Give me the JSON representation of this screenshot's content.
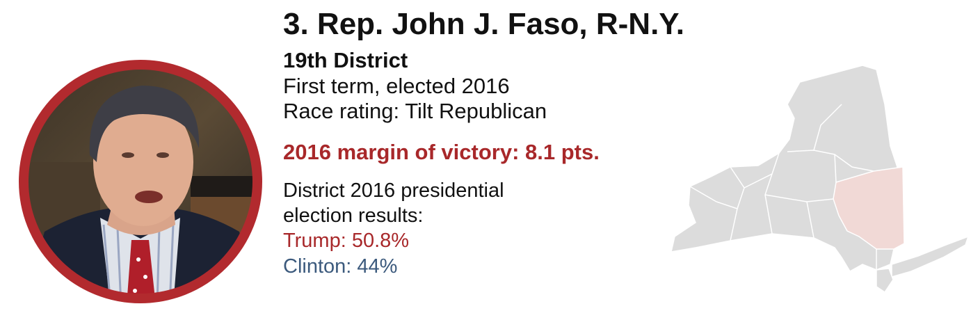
{
  "header": {
    "title": "3. Rep. John J. Faso, R-N.Y.",
    "district": "19th District"
  },
  "details": {
    "term": "First term, elected 2016",
    "rating": "Race rating: Tilt Republican"
  },
  "margin": {
    "text": "2016 margin of victory: 8.1 pts."
  },
  "presidential": {
    "heading_line1": "District 2016 presidential",
    "heading_line2": "election results:",
    "trump": "Trump: 50.8%",
    "clinton": "Clinton: 44%"
  },
  "colors": {
    "accent_red": "#a8282a",
    "clinton_blue": "#3c5a7d",
    "map_gray": "#dcdcdc",
    "district_highlight": "#f1d9d6",
    "ring": "#b22a2e"
  },
  "icons": {
    "portrait": "congressman-photo",
    "map": "new-york-state-map"
  }
}
